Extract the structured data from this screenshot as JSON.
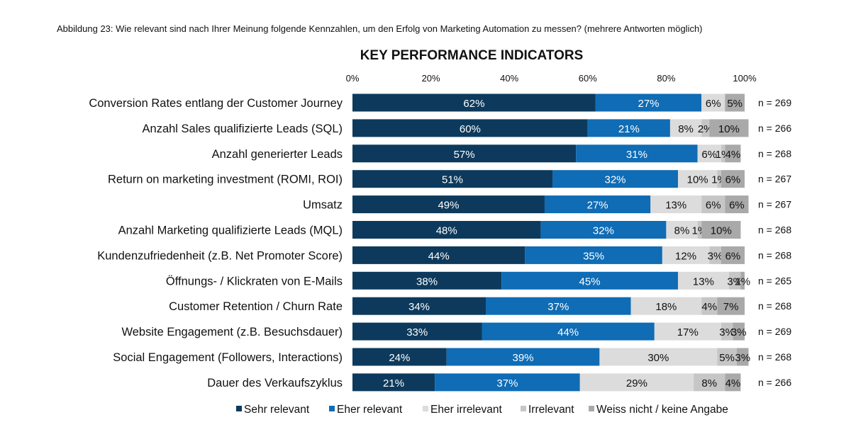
{
  "caption": "Abbildung 23: Wie relevant sind nach Ihrer Meinung folgende Kennzahlen, um den Erfolg von Marketing Automation zu messen? (mehrere Antworten möglich)",
  "chart_data": {
    "type": "bar",
    "orientation": "horizontal",
    "stacked": true,
    "title": "KEY PERFORMANCE INDICATORS",
    "xlim": [
      0,
      100
    ],
    "ticks": [
      "0%",
      "20%",
      "40%",
      "60%",
      "80%",
      "100%"
    ],
    "tick_values": [
      0,
      20,
      40,
      60,
      80,
      100
    ],
    "legend_position": "bottom",
    "categories": [
      "Conversion Rates entlang der Customer Journey",
      "Anzahl Sales qualifizierte Leads (SQL)",
      "Anzahl generierter Leads",
      "Return on marketing investment (ROMI, ROI)",
      "Umsatz",
      "Anzahl Marketing qualifizierte Leads (MQL)",
      "Kundenzufriedenheit (z.B. Net Promoter Score)",
      "Öffnungs- / Klickraten von E-Mails",
      "Customer Retention / Churn Rate",
      "Website Engagement (z.B. Besuchsdauer)",
      "Social Engagement (Followers, Interactions)",
      "Dauer des Verkaufszyklus"
    ],
    "n_labels": [
      "n = 269",
      "n = 266",
      "n = 268",
      "n = 267",
      "n = 267",
      "n = 268",
      "n = 268",
      "n = 265",
      "n = 268",
      "n = 269",
      "n = 268",
      "n = 266"
    ],
    "series": [
      {
        "name": "Sehr relevant",
        "color": "#0d3a5c",
        "label_color": "#ffffff",
        "values": [
          62,
          60,
          57,
          51,
          49,
          48,
          44,
          38,
          34,
          33,
          24,
          21
        ],
        "labels": [
          "62%",
          "60%",
          "57%",
          "51%",
          "49%",
          "48%",
          "44%",
          "38%",
          "34%",
          "33%",
          "24%",
          "21%"
        ]
      },
      {
        "name": "Eher relevant",
        "color": "#0f6cb5",
        "label_color": "#ffffff",
        "values": [
          27,
          21,
          31,
          32,
          27,
          32,
          35,
          45,
          37,
          44,
          39,
          37
        ],
        "labels": [
          "27%",
          "21%",
          "31%",
          "32%",
          "27%",
          "32%",
          "35%",
          "45%",
          "37%",
          "44%",
          "39%",
          "37%"
        ]
      },
      {
        "name": "Eher irrelevant",
        "color": "#dcdcdc",
        "label_color": "#111111",
        "values": [
          6,
          8,
          6,
          10,
          13,
          8,
          12,
          13,
          18,
          17,
          30,
          29
        ],
        "labels": [
          "6%",
          "8%",
          "6%",
          "10%",
          "13%",
          "8%",
          "12%",
          "13%",
          "18%",
          "17%",
          "30%",
          "29%"
        ]
      },
      {
        "name": "Irrelevant",
        "color": "#c6c6c6",
        "label_color": "#111111",
        "values": [
          0,
          2,
          1,
          1,
          6,
          1,
          3,
          3,
          4,
          3,
          5,
          8
        ],
        "labels": [
          "",
          "2%",
          "1%",
          "1%",
          "6%",
          "1%",
          "3%",
          "3%",
          "4%",
          "3%",
          "5%",
          "8%"
        ]
      },
      {
        "name": "Weiss nicht / keine Angabe",
        "color": "#a9a9a9",
        "label_color": "#111111",
        "values": [
          5,
          10,
          4,
          6,
          6,
          10,
          6,
          1,
          7,
          3,
          3,
          4
        ],
        "labels": [
          "5%",
          "10%",
          "4%",
          "6%",
          "6%",
          "10%",
          "6%",
          "1%",
          "7%",
          "3%",
          "3%",
          "4%"
        ]
      }
    ]
  }
}
